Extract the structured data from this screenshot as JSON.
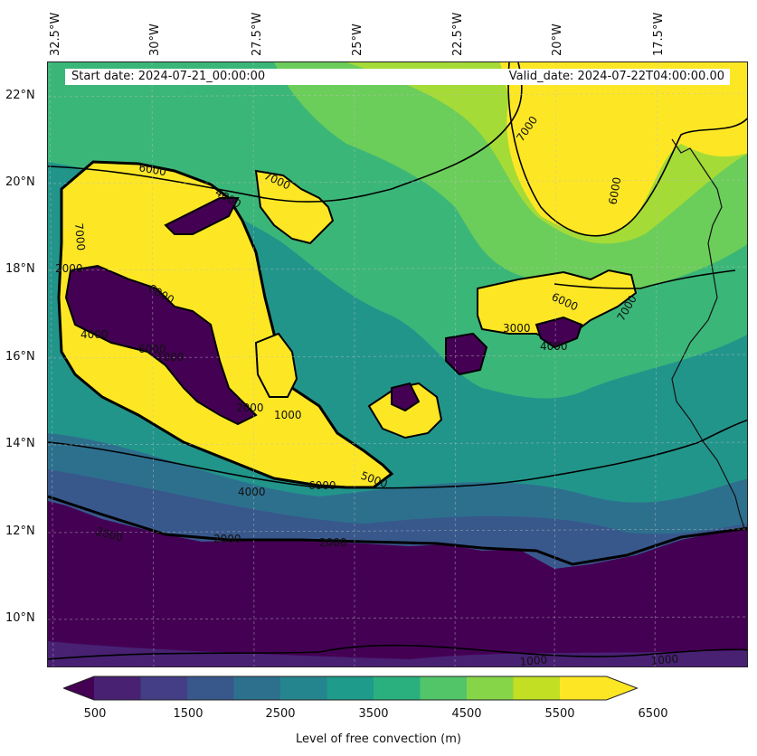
{
  "header": {
    "start_date": "Start date: 2024-07-21_00:00:00",
    "valid_date": "Valid_date: 2024-07-22T04:00:00.00"
  },
  "map": {
    "longitude_labels": [
      "32.5°W",
      "30°W",
      "27.5°W",
      "25°W",
      "22.5°W",
      "20°W",
      "17.5°W"
    ],
    "latitude_labels": [
      "22°N",
      "20°N",
      "18°N",
      "16°N",
      "14°N",
      "12°N",
      "10°N"
    ],
    "contour_labels": [
      "7000",
      "7000",
      "6000",
      "7000",
      "6000",
      "6000",
      "7000",
      "2000",
      "4000",
      "6000",
      "4000",
      "2000",
      "1000",
      "1000",
      "6000",
      "5000",
      "6000",
      "4000",
      "2000",
      "2000",
      "2000",
      "1000",
      "1000",
      "4000",
      "3000"
    ]
  },
  "colorbar": {
    "ticks": [
      "500",
      "1500",
      "2500",
      "3500",
      "4500",
      "5500",
      "6500"
    ],
    "label": "Level of free convection (m)",
    "colors": [
      "#440154",
      "#482173",
      "#433e85",
      "#38588c",
      "#2d708e",
      "#25858e",
      "#1e9b8a",
      "#2ab07f",
      "#52c569",
      "#86d549",
      "#c2df23",
      "#fde725"
    ]
  }
}
